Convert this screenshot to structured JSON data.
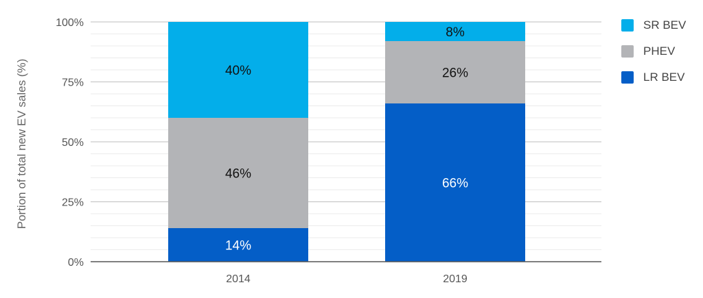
{
  "chart_data": {
    "type": "bar",
    "stacked": true,
    "title": "",
    "xlabel": "",
    "ylabel": "Portion of total new EV sales (%)",
    "ylim": [
      0,
      100
    ],
    "y_ticks": [
      0,
      25,
      50,
      75,
      100
    ],
    "y_tick_labels": [
      "0%",
      "25%",
      "50%",
      "75%",
      "100%"
    ],
    "categories": [
      "2014",
      "2019"
    ],
    "series": [
      {
        "name": "LR BEV",
        "color": "#045ec7",
        "values": [
          14,
          66
        ],
        "labels": [
          "14%",
          "66%"
        ],
        "label_color": "#ffffff"
      },
      {
        "name": "PHEV",
        "color": "#b3b4b7",
        "values": [
          46,
          26
        ],
        "labels": [
          "46%",
          "26%"
        ],
        "label_color": "#111111"
      },
      {
        "name": "SR BEV",
        "color": "#03aeea",
        "values": [
          40,
          8
        ],
        "labels": [
          "40%",
          "8%"
        ],
        "label_color": "#111111"
      }
    ],
    "legend": [
      {
        "name": "SR BEV",
        "color": "#03aeea"
      },
      {
        "name": "PHEV",
        "color": "#b3b4b7"
      },
      {
        "name": "LR BEV",
        "color": "#045ec7"
      }
    ],
    "legend_position": "right",
    "grid": true
  }
}
